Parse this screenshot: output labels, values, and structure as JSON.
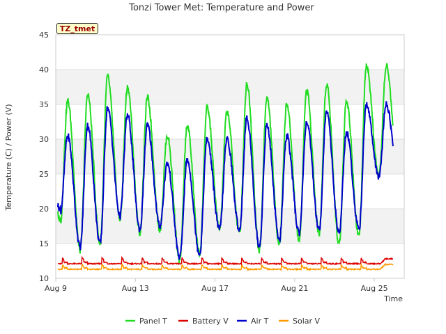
{
  "chart_data": {
    "type": "line",
    "title": "Tonzi Tower Met: Temperature and Power",
    "xlabel": "Time",
    "ylabel": "Temperature (C) / Power (V)",
    "station_badge": "TZ_tmet",
    "xlim": [
      0,
      17.5
    ],
    "ylim": [
      10,
      45
    ],
    "x_ticks": [
      {
        "value": 0,
        "label": "Aug 9"
      },
      {
        "value": 4,
        "label": "Aug 13"
      },
      {
        "value": 8,
        "label": "Aug 17"
      },
      {
        "value": 12,
        "label": "Aug 21"
      },
      {
        "value": 16,
        "label": "Aug 25"
      }
    ],
    "y_ticks": [
      10,
      15,
      20,
      25,
      30,
      35,
      40,
      45
    ],
    "series": [
      {
        "name": "Panel T",
        "color": "#22dd22",
        "daily_min": [
          18.0,
          14.0,
          15.0,
          18.5,
          16.5,
          17.0,
          12.5,
          13.5,
          17.0,
          16.5,
          14.0,
          15.0,
          15.5,
          16.5,
          15.0,
          16.0,
          24.5
        ],
        "daily_max": [
          35.5,
          36.5,
          39.0,
          37.5,
          36.0,
          30.5,
          32.0,
          34.5,
          34.0,
          38.0,
          36.0,
          35.0,
          37.0,
          38.0,
          35.5,
          40.5
        ]
      },
      {
        "name": "Battery V",
        "color": "#dd0000",
        "base": 12.1,
        "peak": 13.0
      },
      {
        "name": "Air T",
        "color": "#0000cc",
        "daily_min": [
          19.5,
          14.5,
          15.0,
          19.0,
          17.0,
          17.5,
          13.0,
          13.5,
          17.0,
          17.0,
          14.5,
          15.5,
          16.5,
          17.0,
          16.5,
          17.0,
          24.5
        ],
        "daily_max": [
          30.5,
          32.0,
          34.5,
          33.5,
          32.0,
          26.5,
          27.0,
          30.0,
          30.0,
          33.0,
          32.0,
          30.5,
          32.5,
          34.0,
          31.0,
          35.0
        ]
      },
      {
        "name": "Solar V",
        "color": "#ff9900",
        "base": 11.3,
        "peak": 12.0
      }
    ],
    "legend": [
      "Panel T",
      "Battery V",
      "Air T",
      "Solar V"
    ],
    "legend_position": "bottom-center",
    "grid": true
  }
}
